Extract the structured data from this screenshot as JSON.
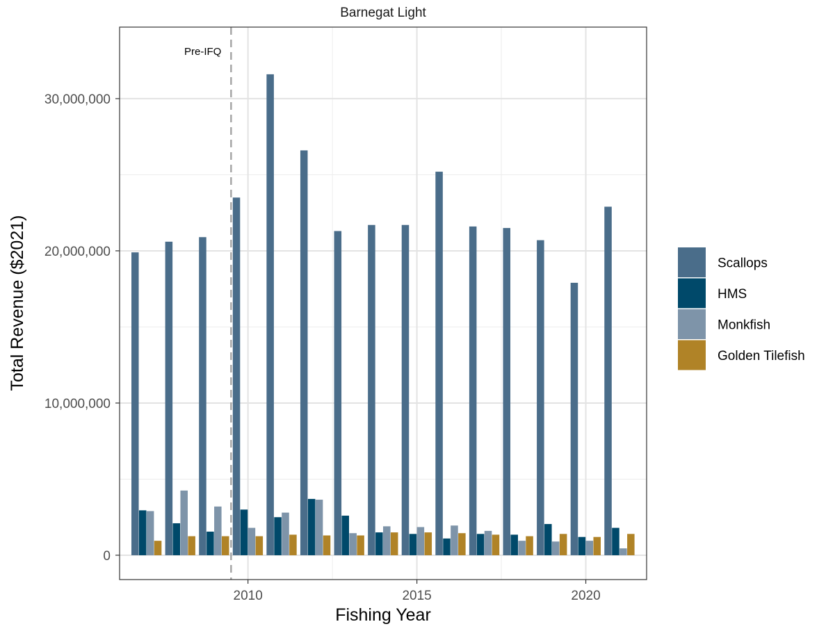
{
  "chart_data": {
    "type": "bar",
    "title": "Barnegat Light",
    "xlabel": "Fishing Year",
    "ylabel": "Total Revenue ($2021)",
    "x": [
      2007,
      2008,
      2009,
      2010,
      2011,
      2012,
      2013,
      2014,
      2015,
      2016,
      2017,
      2018,
      2019,
      2020,
      2021
    ],
    "xticks": [
      2010,
      2015,
      2020
    ],
    "yticks": [
      0,
      10000000,
      20000000,
      30000000
    ],
    "ytick_labels": [
      "0",
      "10,000,000",
      "20,000,000",
      "30,000,000"
    ],
    "xlim": [
      2006.2,
      2021.8
    ],
    "ylim": [
      -1600000,
      34700000
    ],
    "grid": true,
    "legend_position": "right",
    "annotation": {
      "text": "Pre-IFQ",
      "x": 2009.5
    },
    "series": [
      {
        "name": "Scallops",
        "color": "#4A6D8A",
        "values": [
          19900000,
          20600000,
          20900000,
          23500000,
          31600000,
          26600000,
          21300000,
          21700000,
          21700000,
          25200000,
          21600000,
          21500000,
          20700000,
          17900000,
          22900000
        ]
      },
      {
        "name": "HMS",
        "color": "#00496A",
        "values": [
          2950000,
          2100000,
          1550000,
          3000000,
          2500000,
          3700000,
          2600000,
          1500000,
          1400000,
          1100000,
          1400000,
          1350000,
          2050000,
          1200000,
          1800000
        ]
      },
      {
        "name": "Monkfish",
        "color": "#7E94A9",
        "values": [
          2900000,
          4250000,
          3200000,
          1800000,
          2800000,
          3650000,
          1450000,
          1900000,
          1850000,
          1950000,
          1600000,
          950000,
          900000,
          950000,
          450000
        ]
      },
      {
        "name": "Golden Tilefish",
        "color": "#B08327",
        "values": [
          950000,
          1250000,
          1250000,
          1250000,
          1350000,
          1300000,
          1300000,
          1500000,
          1500000,
          1450000,
          1350000,
          1250000,
          1400000,
          1200000,
          1400000
        ]
      }
    ]
  }
}
